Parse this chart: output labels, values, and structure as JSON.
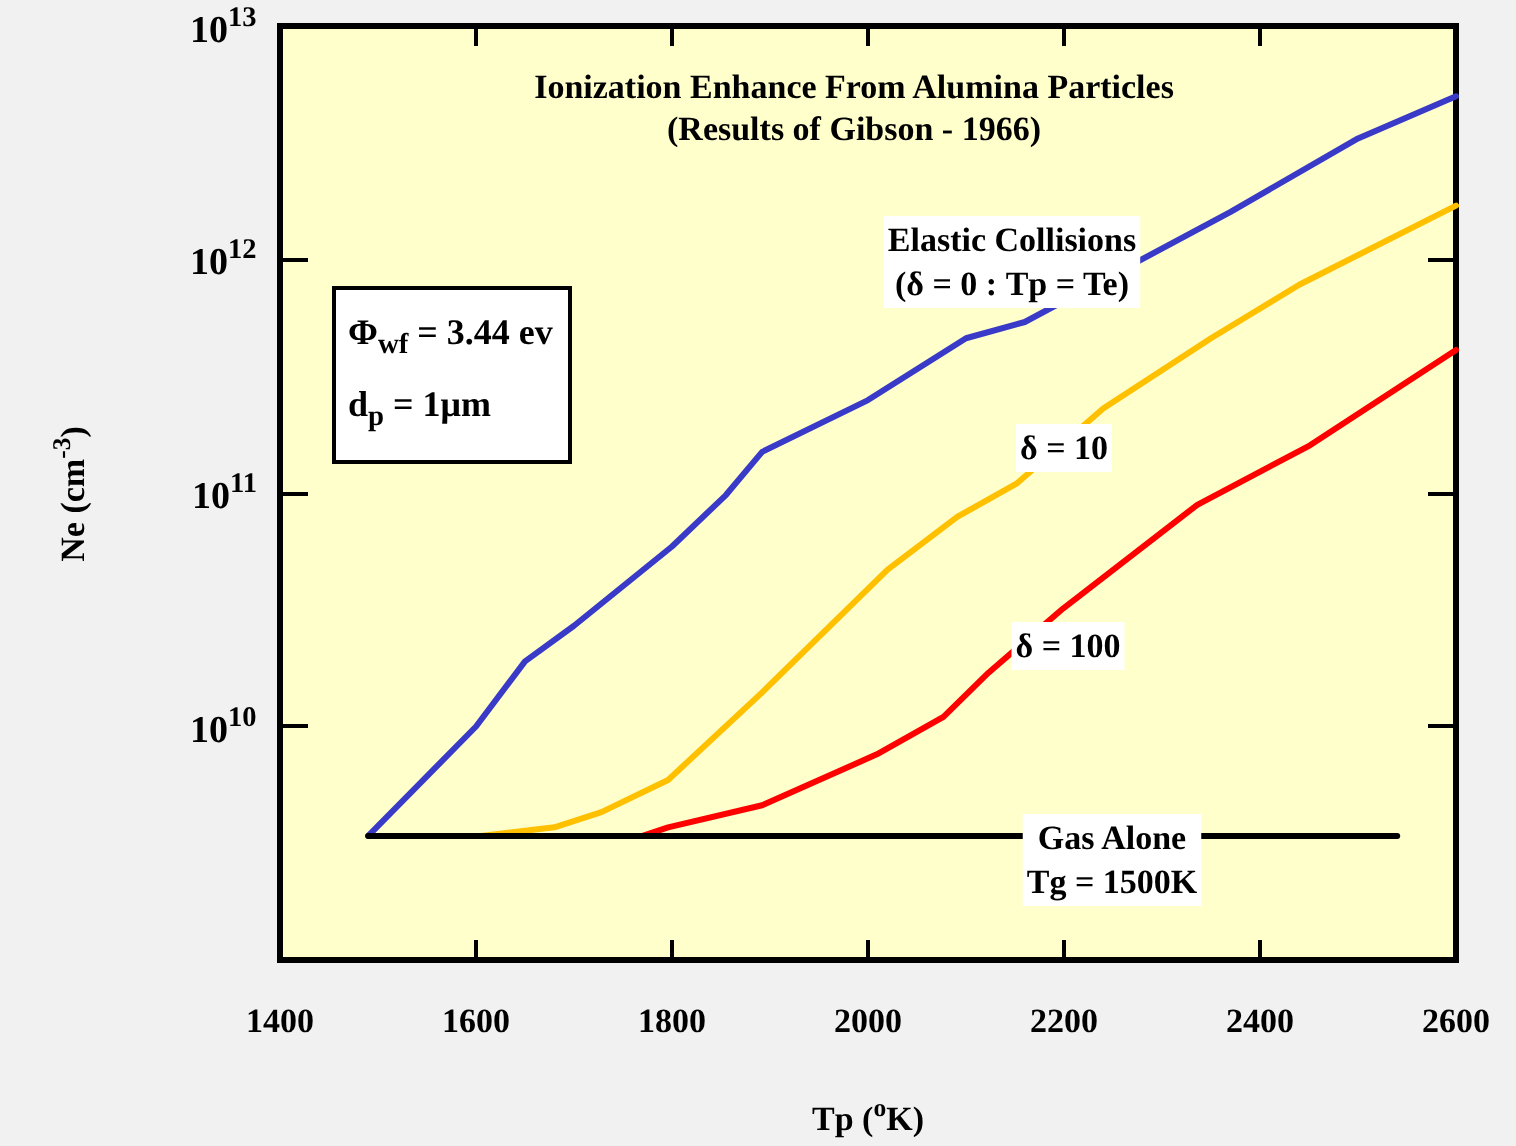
{
  "chart_data": {
    "type": "line",
    "title": "Ionization Enhance From Alumina Particles",
    "subtitle": "(Results of Gibson - 1966)",
    "xlabel": "Tp ($^{o}$K)",
    "ylabel": "Ne (cm$^{-3}$)",
    "annotations": [
      "Φ$_{wf}$ = 3.44 ev\nd$_{p}$ = 1μm"
    ],
    "series": [
      {
        "name": "Elastic Collisions\n(δ = 0 : Tp = Te)",
        "color": "#3a3ac8",
        "x": [
          1490,
          1600,
          1650,
          1700,
          1800,
          1855,
          1892,
          2000,
          2100,
          2160,
          2370,
          2500,
          2600
        ],
        "values": [
          3400000000.0,
          10000000000.0,
          19000000000.0,
          27000000000.0,
          59000000000.0,
          98000000000.0,
          150000000000.0,
          250000000000.0,
          460000000000.0,
          540000000000.0,
          1600000000000.0,
          3300000000000.0,
          5000000000000.0
        ]
      },
      {
        "name": "δ = 10",
        "color": "#ffc000",
        "x": [
          1605,
          1680,
          1728,
          1796,
          1892,
          2020,
          2091,
          2152,
          2240,
          2350,
          2440,
          2600
        ],
        "values": [
          3400000000.0,
          3700000000.0,
          4300000000.0,
          5900000000.0,
          14000000000.0,
          47000000000.0,
          79000000000.0,
          110000000000.0,
          230000000000.0,
          460000000000.0,
          780000000000.0,
          1700000000000.0
        ]
      },
      {
        "name": "δ = 100",
        "color": "#ff0000",
        "x": [
          1770,
          1796,
          1892,
          2009,
          2077,
          2123,
          2199,
          2336,
          2451,
          2600
        ],
        "values": [
          3400000000.0,
          3700000000.0,
          4600000000.0,
          7600000000.0,
          11000000000.0,
          17000000000.0,
          32000000000.0,
          89000000000.0,
          160000000000.0,
          410000000000.0
        ]
      },
      {
        "name": "Gas Alone\nTg = 1500K",
        "color": "#000000",
        "x": [
          1490,
          2540
        ],
        "values": [
          3400000000.0,
          3400000000.0
        ]
      }
    ],
    "xlim": [
      1400,
      2600
    ],
    "xticks": [
      1400,
      1600,
      1800,
      2000,
      2200,
      2400,
      2600
    ],
    "ylim": [
      1000000000.0,
      10000000000000.0
    ],
    "yticks": [
      {
        "value": 10000000000.0,
        "label": "10$^{10}$"
      },
      {
        "value": 100000000000.0,
        "label": "10$^{11}$"
      },
      {
        "value": 1000000000000.0,
        "label": "10$^{12}$"
      },
      {
        "value": 10000000000000.0,
        "label": "10$^{13}$"
      }
    ],
    "log": "y",
    "marker": "none",
    "line_style": "solid",
    "grid": false,
    "legend": false
  }
}
